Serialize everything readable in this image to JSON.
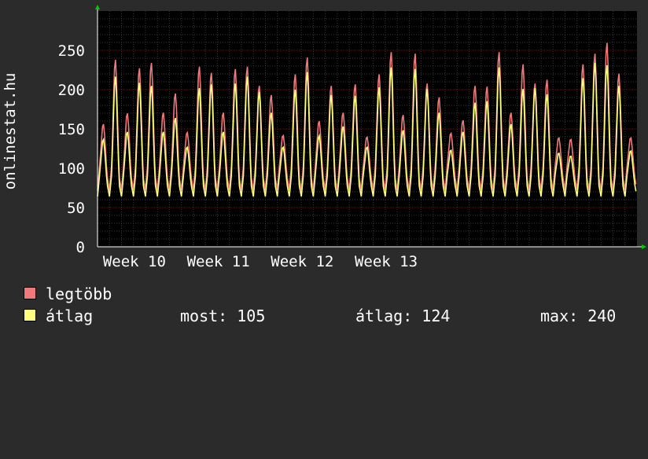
{
  "colors": {
    "background": "#2b2b2b",
    "plot_background": "#000000",
    "grid_major": "#5a1a1a",
    "grid_minor": "#3a3a3a",
    "axis": "#ffffff",
    "arrow": "#00cc00",
    "series_max": "#f07a7a",
    "series_avg": "#ffff80"
  },
  "chart_data": {
    "type": "line",
    "title": "",
    "ylabel": "onlinestat.hu",
    "xlabel": "",
    "ylim": [
      0,
      300
    ],
    "yticks": [
      0,
      50,
      100,
      150,
      200,
      250
    ],
    "x_ticks": [
      "Week 10",
      "Week 11",
      "Week 12",
      "Week 13"
    ],
    "grid": true,
    "series": [
      {
        "name": "legtöbb",
        "color": "#f07a7a",
        "x_unit": "day",
        "daily_peaks": [
          160,
          244,
          174,
          233,
          240,
          175,
          200,
          149,
          235,
          227,
          175,
          232,
          235,
          210,
          198,
          145,
          225,
          247,
          164,
          210,
          175,
          212,
          143,
          225,
          254,
          172,
          252,
          213,
          195,
          148,
          165,
          210,
          209,
          254,
          175,
          238,
          213,
          218,
          142,
          140,
          238,
          252,
          266,
          226,
          142
        ]
      },
      {
        "name": "átlag",
        "color": "#ffff80",
        "x_unit": "day",
        "daily_peaks": [
          140,
          222,
          150,
          214,
          210,
          150,
          168,
          130,
          207,
          212,
          150,
          213,
          222,
          202,
          175,
          130,
          205,
          228,
          145,
          198,
          157,
          197,
          130,
          208,
          234,
          152,
          232,
          206,
          175,
          126,
          150,
          188,
          190,
          234,
          160,
          206,
          207,
          199,
          122,
          118,
          220,
          240,
          237,
          210,
          125
        ]
      }
    ],
    "legend_position": "bottom-left"
  },
  "legend": {
    "items": [
      {
        "label": "legtöbb",
        "color": "#f07a7a"
      },
      {
        "label": "átlag",
        "color": "#ffff80"
      }
    ],
    "stats": {
      "now": "most: 105",
      "avg": "átlag: 124",
      "max": "max: 240"
    }
  }
}
